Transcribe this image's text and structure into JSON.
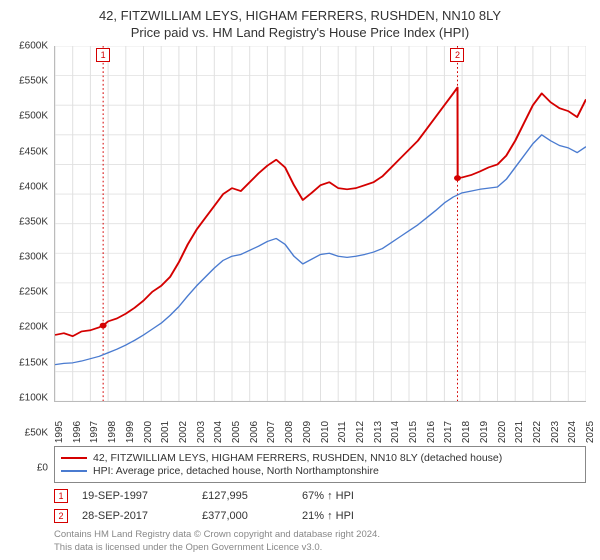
{
  "title": {
    "line1": "42, FITZWILLIAM LEYS, HIGHAM FERRERS, RUSHDEN, NN10 8LY",
    "line2": "Price paid vs. HM Land Registry's House Price Index (HPI)",
    "fontsize": 13,
    "color": "#333333"
  },
  "chart": {
    "type": "line",
    "background_color": "#ffffff",
    "grid_color": "#e0e0e0",
    "axis_color": "#bbbbbb",
    "y_axis": {
      "min": 0,
      "max": 600000,
      "step": 50000,
      "ticks": [
        "£0",
        "£50K",
        "£100K",
        "£150K",
        "£200K",
        "£250K",
        "£300K",
        "£350K",
        "£400K",
        "£450K",
        "£500K",
        "£550K",
        "£600K"
      ],
      "fontsize": 10
    },
    "x_axis": {
      "min": 1995,
      "max": 2025,
      "ticks": [
        "1995",
        "1996",
        "1997",
        "1998",
        "1999",
        "2000",
        "2001",
        "2002",
        "2003",
        "2004",
        "2005",
        "2006",
        "2007",
        "2008",
        "2009",
        "2010",
        "2011",
        "2012",
        "2013",
        "2014",
        "2015",
        "2016",
        "2017",
        "2018",
        "2019",
        "2020",
        "2021",
        "2022",
        "2023",
        "2024",
        "2025"
      ],
      "fontsize": 10,
      "rotation": -90
    },
    "series": [
      {
        "name": "property_price",
        "label": "42, FITZWILLIAM LEYS, HIGHAM FERRERS, RUSHDEN, NN10 8LY (detached house)",
        "color": "#d40000",
        "width": 2,
        "points": [
          [
            1995.0,
            112
          ],
          [
            1995.5,
            115
          ],
          [
            1996.0,
            110
          ],
          [
            1996.5,
            118
          ],
          [
            1997.0,
            120
          ],
          [
            1997.5,
            125
          ],
          [
            1997.72,
            128
          ],
          [
            1998.0,
            135
          ],
          [
            1998.5,
            140
          ],
          [
            1999.0,
            148
          ],
          [
            1999.5,
            158
          ],
          [
            2000.0,
            170
          ],
          [
            2000.5,
            185
          ],
          [
            2001.0,
            195
          ],
          [
            2001.5,
            210
          ],
          [
            2002.0,
            235
          ],
          [
            2002.5,
            265
          ],
          [
            2003.0,
            290
          ],
          [
            2003.5,
            310
          ],
          [
            2004.0,
            330
          ],
          [
            2004.5,
            350
          ],
          [
            2005.0,
            360
          ],
          [
            2005.5,
            355
          ],
          [
            2006.0,
            370
          ],
          [
            2006.5,
            385
          ],
          [
            2007.0,
            398
          ],
          [
            2007.5,
            408
          ],
          [
            2008.0,
            395
          ],
          [
            2008.5,
            365
          ],
          [
            2009.0,
            340
          ],
          [
            2009.5,
            352
          ],
          [
            2010.0,
            365
          ],
          [
            2010.5,
            370
          ],
          [
            2011.0,
            360
          ],
          [
            2011.5,
            358
          ],
          [
            2012.0,
            360
          ],
          [
            2012.5,
            365
          ],
          [
            2013.0,
            370
          ],
          [
            2013.5,
            380
          ],
          [
            2014.0,
            395
          ],
          [
            2014.5,
            410
          ],
          [
            2015.0,
            425
          ],
          [
            2015.5,
            440
          ],
          [
            2016.0,
            460
          ],
          [
            2016.5,
            480
          ],
          [
            2017.0,
            500
          ],
          [
            2017.5,
            520
          ],
          [
            2017.74,
            530
          ],
          [
            2017.75,
            377
          ],
          [
            2018.0,
            378
          ],
          [
            2018.5,
            382
          ],
          [
            2019.0,
            388
          ],
          [
            2019.5,
            395
          ],
          [
            2020.0,
            400
          ],
          [
            2020.5,
            415
          ],
          [
            2021.0,
            440
          ],
          [
            2021.5,
            470
          ],
          [
            2022.0,
            500
          ],
          [
            2022.5,
            520
          ],
          [
            2023.0,
            505
          ],
          [
            2023.5,
            495
          ],
          [
            2024.0,
            490
          ],
          [
            2024.5,
            480
          ],
          [
            2025.0,
            510
          ]
        ]
      },
      {
        "name": "hpi_avg",
        "label": "HPI: Average price, detached house, North Northamptonshire",
        "color": "#4a7bd0",
        "width": 1.5,
        "points": [
          [
            1995.0,
            62
          ],
          [
            1995.5,
            64
          ],
          [
            1996.0,
            65
          ],
          [
            1996.5,
            68
          ],
          [
            1997.0,
            72
          ],
          [
            1997.5,
            76
          ],
          [
            1998.0,
            82
          ],
          [
            1998.5,
            88
          ],
          [
            1999.0,
            95
          ],
          [
            1999.5,
            103
          ],
          [
            2000.0,
            112
          ],
          [
            2000.5,
            122
          ],
          [
            2001.0,
            132
          ],
          [
            2001.5,
            145
          ],
          [
            2002.0,
            160
          ],
          [
            2002.5,
            178
          ],
          [
            2003.0,
            195
          ],
          [
            2003.5,
            210
          ],
          [
            2004.0,
            225
          ],
          [
            2004.5,
            238
          ],
          [
            2005.0,
            245
          ],
          [
            2005.5,
            248
          ],
          [
            2006.0,
            255
          ],
          [
            2006.5,
            262
          ],
          [
            2007.0,
            270
          ],
          [
            2007.5,
            275
          ],
          [
            2008.0,
            265
          ],
          [
            2008.5,
            245
          ],
          [
            2009.0,
            232
          ],
          [
            2009.5,
            240
          ],
          [
            2010.0,
            248
          ],
          [
            2010.5,
            250
          ],
          [
            2011.0,
            245
          ],
          [
            2011.5,
            243
          ],
          [
            2012.0,
            245
          ],
          [
            2012.5,
            248
          ],
          [
            2013.0,
            252
          ],
          [
            2013.5,
            258
          ],
          [
            2014.0,
            268
          ],
          [
            2014.5,
            278
          ],
          [
            2015.0,
            288
          ],
          [
            2015.5,
            298
          ],
          [
            2016.0,
            310
          ],
          [
            2016.5,
            322
          ],
          [
            2017.0,
            335
          ],
          [
            2017.5,
            345
          ],
          [
            2018.0,
            352
          ],
          [
            2018.5,
            355
          ],
          [
            2019.0,
            358
          ],
          [
            2019.5,
            360
          ],
          [
            2020.0,
            362
          ],
          [
            2020.5,
            375
          ],
          [
            2021.0,
            395
          ],
          [
            2021.5,
            415
          ],
          [
            2022.0,
            435
          ],
          [
            2022.5,
            450
          ],
          [
            2023.0,
            440
          ],
          [
            2023.5,
            432
          ],
          [
            2024.0,
            428
          ],
          [
            2024.5,
            420
          ],
          [
            2025.0,
            430
          ]
        ]
      }
    ],
    "sale_markers": [
      {
        "num": "1",
        "year_frac": 1997.72,
        "price_k": 128,
        "vline_color": "#d40000",
        "box_border": "#d40000",
        "dot_color": "#d40000"
      },
      {
        "num": "2",
        "year_frac": 2017.74,
        "price_k": 377,
        "vline_color": "#d40000",
        "box_border": "#d40000",
        "dot_color": "#d40000"
      }
    ]
  },
  "legend": {
    "border_color": "#888888",
    "fontsize": 10.5,
    "rows": [
      {
        "color": "#d40000",
        "label": "42, FITZWILLIAM LEYS, HIGHAM FERRERS, RUSHDEN, NN10 8LY (detached house)"
      },
      {
        "color": "#4a7bd0",
        "label": "HPI: Average price, detached house, North Northamptonshire"
      }
    ]
  },
  "sales_table": [
    {
      "num": "1",
      "box_color": "#d40000",
      "date": "19-SEP-1997",
      "price": "£127,995",
      "diff": "67% ↑ HPI"
    },
    {
      "num": "2",
      "box_color": "#d40000",
      "date": "28-SEP-2017",
      "price": "£377,000",
      "diff": "21% ↑ HPI"
    }
  ],
  "footer": {
    "line1": "Contains HM Land Registry data © Crown copyright and database right 2024.",
    "line2": "This data is licensed under the Open Government Licence v3.0.",
    "color": "#888888",
    "fontsize": 9.5
  }
}
